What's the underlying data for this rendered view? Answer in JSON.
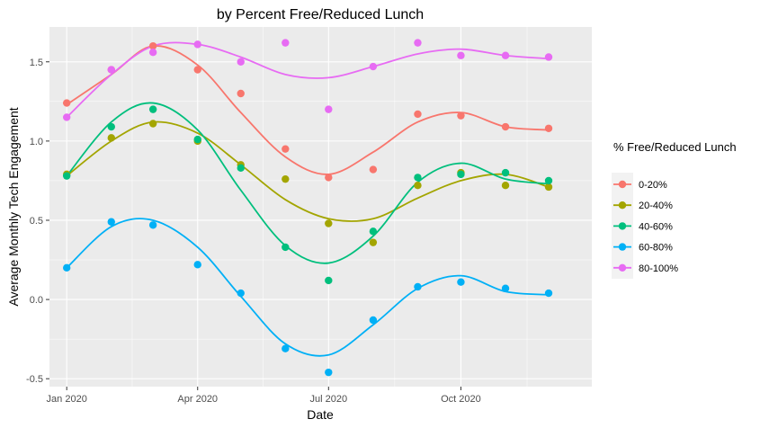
{
  "chart_data": {
    "type": "scatter",
    "title": "by Percent Free/Reduced Lunch",
    "xlabel": "Date",
    "ylabel": "Average Monthly Tech Engagement",
    "x": [
      "2020-01",
      "2020-02",
      "2020-03",
      "2020-04",
      "2020-05",
      "2020-06",
      "2020-07",
      "2020-08",
      "2020-09",
      "2020-10",
      "2020-11",
      "2020-12"
    ],
    "x_ticks": [
      {
        "value": "2020-01",
        "label": "Jan 2020"
      },
      {
        "value": "2020-04",
        "label": "Apr 2020"
      },
      {
        "value": "2020-07",
        "label": "Jul 2020"
      },
      {
        "value": "2020-10",
        "label": "Oct 2020"
      }
    ],
    "y_ticks": [
      {
        "value": -0.5,
        "label": "-0.5"
      },
      {
        "value": 0.0,
        "label": "0.0"
      },
      {
        "value": 0.5,
        "label": "0.5"
      },
      {
        "value": 1.0,
        "label": "1.0"
      },
      {
        "value": 1.5,
        "label": "1.5"
      }
    ],
    "xlim": [
      "2019-12-20",
      "2020-12-31"
    ],
    "ylim": [
      -0.55,
      1.72
    ],
    "grid": true,
    "smooth_lines": true,
    "legend": {
      "title": "% Free/Reduced Lunch",
      "position": "right"
    },
    "series": [
      {
        "name": "0-20%",
        "color": "#F8766D",
        "values": [
          1.24,
          1.45,
          1.6,
          1.45,
          1.3,
          0.95,
          0.77,
          0.82,
          1.17,
          1.16,
          1.09,
          1.08
        ],
        "smooth": [
          1.23,
          1.42,
          1.6,
          1.48,
          1.18,
          0.9,
          0.79,
          0.93,
          1.12,
          1.18,
          1.09,
          1.07
        ]
      },
      {
        "name": "20-40%",
        "color": "#A3A500",
        "values": [
          0.79,
          1.02,
          1.11,
          1.0,
          0.85,
          0.76,
          0.48,
          0.36,
          0.72,
          0.8,
          0.72,
          0.71
        ],
        "smooth": [
          0.78,
          1.0,
          1.12,
          1.05,
          0.85,
          0.63,
          0.51,
          0.51,
          0.64,
          0.75,
          0.79,
          0.71
        ]
      },
      {
        "name": "40-60%",
        "color": "#00BF7D",
        "values": [
          0.78,
          1.09,
          1.2,
          1.01,
          0.83,
          0.33,
          0.12,
          0.43,
          0.77,
          0.79,
          0.8,
          0.75
        ],
        "smooth": [
          0.78,
          1.12,
          1.24,
          1.07,
          0.69,
          0.34,
          0.23,
          0.4,
          0.74,
          0.86,
          0.76,
          0.73
        ]
      },
      {
        "name": "60-80%",
        "color": "#00B0F6",
        "values": [
          0.2,
          0.49,
          0.47,
          0.22,
          0.04,
          -0.31,
          -0.46,
          -0.13,
          0.08,
          0.11,
          0.07,
          0.04
        ],
        "smooth": [
          0.2,
          0.46,
          0.5,
          0.33,
          0.02,
          -0.28,
          -0.35,
          -0.16,
          0.07,
          0.15,
          0.05,
          0.03
        ]
      },
      {
        "name": "80-100%",
        "color": "#E76BF3",
        "values": [
          1.15,
          1.45,
          1.56,
          1.61,
          1.5,
          1.62,
          1.2,
          1.47,
          1.62,
          1.54,
          1.54,
          1.53
        ],
        "smooth": [
          1.15,
          1.42,
          1.6,
          1.61,
          1.53,
          1.42,
          1.4,
          1.47,
          1.55,
          1.58,
          1.54,
          1.52
        ]
      }
    ]
  }
}
